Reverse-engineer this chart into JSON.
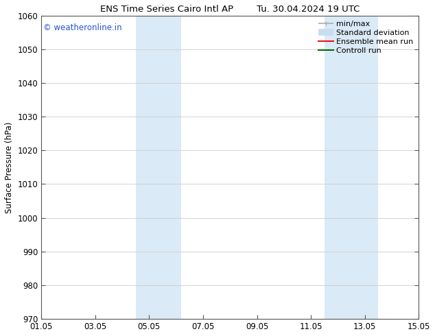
{
  "title_left": "ENS Time Series Cairo Intl AP",
  "title_right": "Tu. 30.04.2024 19 UTC",
  "ylabel": "Surface Pressure (hPa)",
  "ylim": [
    970,
    1060
  ],
  "yticks": [
    970,
    980,
    990,
    1000,
    1010,
    1020,
    1030,
    1040,
    1050,
    1060
  ],
  "xlim_start": 0,
  "xlim_end": 14,
  "xtick_labels": [
    "01.05",
    "03.05",
    "05.05",
    "07.05",
    "09.05",
    "11.05",
    "13.05",
    "15.05"
  ],
  "xtick_positions": [
    0,
    2,
    4,
    6,
    8,
    10,
    12,
    14
  ],
  "shaded_bands": [
    {
      "x_start": 3.5,
      "x_end": 5.2
    },
    {
      "x_start": 10.5,
      "x_end": 12.5
    }
  ],
  "shade_color": "#daeaf6",
  "watermark_text": "© weatheronline.in",
  "watermark_color": "#2255cc",
  "legend_items": [
    {
      "label": "min/max",
      "color": "#aaaaaa",
      "lw": 1.2
    },
    {
      "label": "Standard deviation",
      "color": "#c8ddf0",
      "lw": 7
    },
    {
      "label": "Ensemble mean run",
      "color": "#ee1111",
      "lw": 1.5
    },
    {
      "label": "Controll run",
      "color": "#006600",
      "lw": 1.5
    }
  ],
  "bg_color": "#ffffff",
  "axes_bg_color": "#ffffff",
  "grid_color": "#cccccc",
  "font_size": 8.5,
  "title_font_size": 9.5
}
